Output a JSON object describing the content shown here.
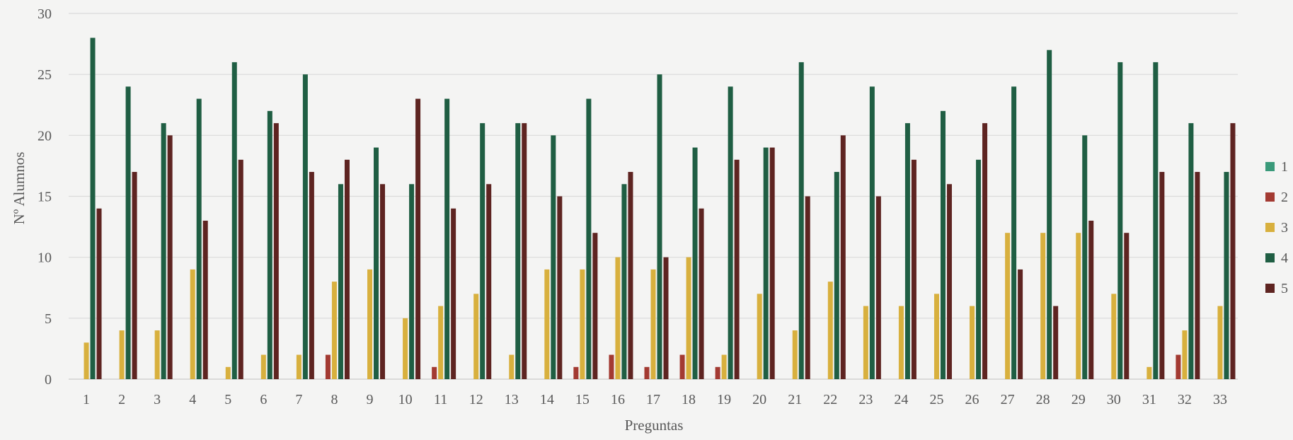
{
  "chart_data": {
    "type": "bar",
    "title": "",
    "xlabel": "Preguntas",
    "ylabel": "Nº Alumnos",
    "ylim": [
      0,
      30
    ],
    "yticks": [
      0,
      5,
      10,
      15,
      20,
      25,
      30
    ],
    "grid": true,
    "legend_position": "right",
    "categories": [
      "1",
      "2",
      "3",
      "4",
      "5",
      "6",
      "7",
      "8",
      "9",
      "10",
      "11",
      "12",
      "13",
      "14",
      "15",
      "16",
      "17",
      "18",
      "19",
      "20",
      "21",
      "22",
      "23",
      "24",
      "25",
      "26",
      "27",
      "28",
      "29",
      "30",
      "31",
      "32",
      "33"
    ],
    "series": [
      {
        "name": "1",
        "color": "#3a9a7a",
        "values": [
          0,
          0,
          0,
          0,
          0,
          0,
          0,
          0,
          0,
          0,
          0,
          0,
          0,
          0,
          0,
          0,
          0,
          0,
          0,
          0,
          0,
          0,
          0,
          0,
          0,
          0,
          0,
          0,
          0,
          0,
          0,
          0,
          0
        ]
      },
      {
        "name": "2",
        "color": "#a33a32",
        "values": [
          0,
          0,
          0,
          0,
          0,
          0,
          0,
          2,
          0,
          0,
          1,
          0,
          0,
          0,
          1,
          2,
          1,
          2,
          1,
          0,
          0,
          0,
          0,
          0,
          0,
          0,
          0,
          0,
          0,
          0,
          0,
          2,
          0
        ]
      },
      {
        "name": "3",
        "color": "#d8b03e",
        "values": [
          3,
          4,
          4,
          9,
          1,
          2,
          2,
          8,
          9,
          5,
          6,
          7,
          2,
          9,
          9,
          10,
          9,
          10,
          2,
          7,
          4,
          8,
          6,
          6,
          7,
          6,
          12,
          12,
          12,
          7,
          1,
          4,
          6
        ]
      },
      {
        "name": "4",
        "color": "#1f5e43",
        "values": [
          28,
          24,
          21,
          23,
          26,
          22,
          25,
          16,
          19,
          16,
          23,
          21,
          21,
          20,
          23,
          16,
          25,
          19,
          24,
          19,
          26,
          17,
          24,
          21,
          22,
          18,
          24,
          27,
          20,
          26,
          26,
          21,
          17
        ]
      },
      {
        "name": "5",
        "color": "#5e2421",
        "values": [
          14,
          17,
          20,
          13,
          18,
          21,
          17,
          18,
          16,
          23,
          14,
          16,
          21,
          15,
          12,
          17,
          10,
          14,
          18,
          19,
          15,
          20,
          15,
          18,
          16,
          21,
          9,
          6,
          13,
          12,
          17,
          17,
          21
        ]
      }
    ]
  }
}
